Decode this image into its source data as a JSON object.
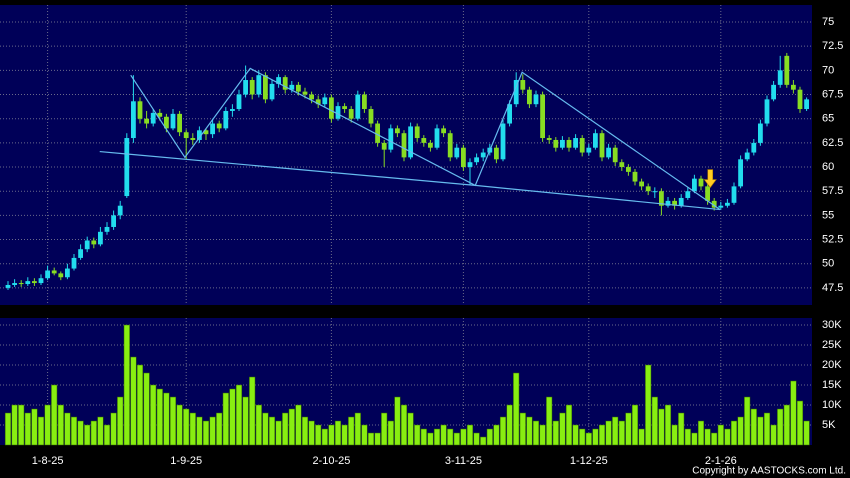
{
  "chart_data": {
    "type": "candlestick",
    "categories": [
      null,
      null,
      null,
      null,
      null,
      null,
      "1-8-25",
      null,
      null,
      null,
      null,
      null,
      null,
      null,
      null,
      null,
      null,
      null,
      null,
      null,
      null,
      null,
      null,
      null,
      null,
      null,
      null,
      "1-9-25",
      null,
      null,
      null,
      null,
      null,
      null,
      null,
      null,
      null,
      null,
      null,
      null,
      null,
      null,
      null,
      null,
      null,
      null,
      null,
      null,
      null,
      "2-10-25",
      null,
      null,
      null,
      null,
      null,
      null,
      null,
      null,
      null,
      null,
      null,
      null,
      null,
      null,
      null,
      null,
      null,
      null,
      null,
      "3-11-25",
      null,
      null,
      null,
      null,
      null,
      null,
      null,
      null,
      null,
      null,
      null,
      null,
      null,
      null,
      null,
      null,
      null,
      null,
      "1-12-25",
      null,
      null,
      null,
      null,
      null,
      null,
      null,
      null,
      null,
      null,
      null,
      null,
      null,
      null,
      null,
      null,
      null,
      null,
      null,
      "2-1-26",
      null,
      null,
      null,
      null,
      null,
      null,
      null,
      null,
      null,
      null,
      null,
      null,
      null
    ],
    "ohlc": [
      [
        47.5,
        48.2,
        47.3,
        47.8
      ],
      [
        47.8,
        48.4,
        47.6,
        48.0
      ],
      [
        48.0,
        48.3,
        47.6,
        47.9
      ],
      [
        47.9,
        48.6,
        47.7,
        48.2
      ],
      [
        48.2,
        48.5,
        47.7,
        48.0
      ],
      [
        48.0,
        48.9,
        47.8,
        48.5
      ],
      [
        48.5,
        49.8,
        48.3,
        49.3
      ],
      [
        49.3,
        49.6,
        48.8,
        49.0
      ],
      [
        49.0,
        49.2,
        48.3,
        48.6
      ],
      [
        48.6,
        50.0,
        48.4,
        49.5
      ],
      [
        49.5,
        51.0,
        49.3,
        50.6
      ],
      [
        50.6,
        52.0,
        50.4,
        51.5
      ],
      [
        51.5,
        52.8,
        51.2,
        52.4
      ],
      [
        52.4,
        52.7,
        51.6,
        52.0
      ],
      [
        52.0,
        53.8,
        51.8,
        53.3
      ],
      [
        53.3,
        54.3,
        53.0,
        53.8
      ],
      [
        53.8,
        55.5,
        53.5,
        55.0
      ],
      [
        55.0,
        56.5,
        54.6,
        56.0
      ],
      [
        57.0,
        63.5,
        56.8,
        63.0
      ],
      [
        63.0,
        69.5,
        62.5,
        66.8
      ],
      [
        66.8,
        67.2,
        64.5,
        65.0
      ],
      [
        65.0,
        65.8,
        64.0,
        64.5
      ],
      [
        64.5,
        66.0,
        64.2,
        65.6
      ],
      [
        65.6,
        66.0,
        64.8,
        65.2
      ],
      [
        65.2,
        65.5,
        63.6,
        64.0
      ],
      [
        64.0,
        66.0,
        63.8,
        65.5
      ],
      [
        65.5,
        65.8,
        63.2,
        63.6
      ],
      [
        63.6,
        63.9,
        60.8,
        63.0
      ],
      [
        63.0,
        63.5,
        62.3,
        62.8
      ],
      [
        62.8,
        64.2,
        62.5,
        63.8
      ],
      [
        63.8,
        64.0,
        62.8,
        63.4
      ],
      [
        63.4,
        65.0,
        63.0,
        64.5
      ],
      [
        64.5,
        64.8,
        63.6,
        64.0
      ],
      [
        64.0,
        66.2,
        63.8,
        65.8
      ],
      [
        65.8,
        66.5,
        65.2,
        66.0
      ],
      [
        66.0,
        68.0,
        65.8,
        67.5
      ],
      [
        67.5,
        70.5,
        67.2,
        69.0
      ],
      [
        69.0,
        69.3,
        67.0,
        67.5
      ],
      [
        67.5,
        70.0,
        67.2,
        69.5
      ],
      [
        69.5,
        69.8,
        66.6,
        67.0
      ],
      [
        67.0,
        69.0,
        66.8,
        68.6
      ],
      [
        68.6,
        69.6,
        68.2,
        69.3
      ],
      [
        69.3,
        69.5,
        67.6,
        68.0
      ],
      [
        68.0,
        68.9,
        67.7,
        68.5
      ],
      [
        68.5,
        68.8,
        67.4,
        67.8
      ],
      [
        67.8,
        68.2,
        67.1,
        67.5
      ],
      [
        67.5,
        67.8,
        66.6,
        67.0
      ],
      [
        67.0,
        67.4,
        66.1,
        66.5
      ],
      [
        66.5,
        67.6,
        66.2,
        67.2
      ],
      [
        67.2,
        67.5,
        64.6,
        65.0
      ],
      [
        65.0,
        66.7,
        64.8,
        66.3
      ],
      [
        66.3,
        66.6,
        65.6,
        66.0
      ],
      [
        66.0,
        66.3,
        64.6,
        65.0
      ],
      [
        65.0,
        67.9,
        64.8,
        67.5
      ],
      [
        67.5,
        67.8,
        65.6,
        66.0
      ],
      [
        66.0,
        66.3,
        64.1,
        64.5
      ],
      [
        64.5,
        64.8,
        62.1,
        62.5
      ],
      [
        62.5,
        62.8,
        60.0,
        61.8
      ],
      [
        61.8,
        64.4,
        61.5,
        64.0
      ],
      [
        64.0,
        64.3,
        63.1,
        63.5
      ],
      [
        63.5,
        63.8,
        60.6,
        61.0
      ],
      [
        61.0,
        64.6,
        60.8,
        64.2
      ],
      [
        64.2,
        64.5,
        62.6,
        63.0
      ],
      [
        63.0,
        63.3,
        62.1,
        62.5
      ],
      [
        62.5,
        62.8,
        61.6,
        62.0
      ],
      [
        62.0,
        64.4,
        61.8,
        64.0
      ],
      [
        64.0,
        64.3,
        63.1,
        63.5
      ],
      [
        63.5,
        63.8,
        60.6,
        61.0
      ],
      [
        61.0,
        62.4,
        60.8,
        62.0
      ],
      [
        62.0,
        62.3,
        59.6,
        60.0
      ],
      [
        60.0,
        60.9,
        58.2,
        60.5
      ],
      [
        60.5,
        61.4,
        60.2,
        61.0
      ],
      [
        61.0,
        61.9,
        60.6,
        61.5
      ],
      [
        61.5,
        62.4,
        61.2,
        62.0
      ],
      [
        62.0,
        62.3,
        60.4,
        60.8
      ],
      [
        60.8,
        64.9,
        60.6,
        64.5
      ],
      [
        64.5,
        66.9,
        64.2,
        66.5
      ],
      [
        66.5,
        69.8,
        66.2,
        69.0
      ],
      [
        69.0,
        69.6,
        67.6,
        68.0
      ],
      [
        68.0,
        68.3,
        66.1,
        66.5
      ],
      [
        66.5,
        67.9,
        66.2,
        67.5
      ],
      [
        67.5,
        67.8,
        62.6,
        63.0
      ],
      [
        63.0,
        63.3,
        62.4,
        62.8
      ],
      [
        62.8,
        63.1,
        61.6,
        62.0
      ],
      [
        62.0,
        63.2,
        61.8,
        62.8
      ],
      [
        62.8,
        63.1,
        61.6,
        62.0
      ],
      [
        62.0,
        63.4,
        61.8,
        63.0
      ],
      [
        63.0,
        63.3,
        61.1,
        61.5
      ],
      [
        61.5,
        62.4,
        61.2,
        62.0
      ],
      [
        62.0,
        63.9,
        61.8,
        63.5
      ],
      [
        63.5,
        63.8,
        60.6,
        61.0
      ],
      [
        61.0,
        62.4,
        60.8,
        62.0
      ],
      [
        62.0,
        62.3,
        60.1,
        60.5
      ],
      [
        60.5,
        60.8,
        59.6,
        60.0
      ],
      [
        60.0,
        60.3,
        59.1,
        59.5
      ],
      [
        59.5,
        59.8,
        58.1,
        58.5
      ],
      [
        58.5,
        58.8,
        57.6,
        58.0
      ],
      [
        58.0,
        58.3,
        57.1,
        57.5
      ],
      [
        57.5,
        57.9,
        56.8,
        57.5
      ],
      [
        57.5,
        57.8,
        55.0,
        56.0
      ],
      [
        56.0,
        56.9,
        55.8,
        56.5
      ],
      [
        56.5,
        56.8,
        55.6,
        56.0
      ],
      [
        56.0,
        57.2,
        55.8,
        56.8
      ],
      [
        56.8,
        57.9,
        56.6,
        57.5
      ],
      [
        57.5,
        59.2,
        57.3,
        58.8
      ],
      [
        58.8,
        59.1,
        57.6,
        58.0
      ],
      [
        58.0,
        58.3,
        56.1,
        56.5
      ],
      [
        56.5,
        56.8,
        55.5,
        55.8
      ],
      [
        55.8,
        56.4,
        55.6,
        56.0
      ],
      [
        56.0,
        56.7,
        55.8,
        56.3
      ],
      [
        56.3,
        58.4,
        56.1,
        58.0
      ],
      [
        58.0,
        61.2,
        57.8,
        60.8
      ],
      [
        60.8,
        61.9,
        60.6,
        61.5
      ],
      [
        61.5,
        62.9,
        61.2,
        62.5
      ],
      [
        62.5,
        64.9,
        62.2,
        64.5
      ],
      [
        64.5,
        67.4,
        64.2,
        67.0
      ],
      [
        67.0,
        68.9,
        66.8,
        68.5
      ],
      [
        68.5,
        71.5,
        68.2,
        70.0
      ],
      [
        71.5,
        71.8,
        68.2,
        68.5
      ],
      [
        68.5,
        69.0,
        67.6,
        68.0
      ],
      [
        68.0,
        68.3,
        65.6,
        66.0
      ],
      [
        66.0,
        67.2,
        65.8,
        67.0
      ]
    ],
    "up_color": "#22ddee",
    "down_color": "#88dd22",
    "volume": [
      8000,
      10000,
      10000,
      8000,
      9000,
      7000,
      10000,
      15000,
      10000,
      8000,
      7000,
      6000,
      5000,
      6000,
      7000,
      5000,
      8000,
      12000,
      30000,
      22000,
      20000,
      18000,
      15000,
      14000,
      13000,
      12000,
      10000,
      9000,
      8000,
      7000,
      6000,
      7000,
      8000,
      13000,
      14000,
      15000,
      12000,
      17000,
      10000,
      8000,
      7000,
      6000,
      8000,
      9000,
      10000,
      7000,
      6000,
      5000,
      4000,
      5000,
      6000,
      5000,
      7000,
      8000,
      5000,
      3000,
      3000,
      8000,
      6000,
      12000,
      10000,
      8000,
      5000,
      4000,
      3000,
      4000,
      5000,
      4000,
      3000,
      4000,
      5000,
      3000,
      2000,
      4000,
      5000,
      7000,
      10000,
      18000,
      8000,
      7000,
      6000,
      5000,
      12000,
      6000,
      8000,
      10000,
      5000,
      4000,
      3000,
      4000,
      5000,
      6000,
      7000,
      6000,
      8000,
      10000,
      4000,
      20000,
      12000,
      9000,
      10000,
      5000,
      8000,
      4000,
      3000,
      6000,
      4000,
      3000,
      5000,
      4000,
      6000,
      7000,
      12000,
      9000,
      7000,
      8000,
      5000,
      9000,
      10000,
      16000,
      11000,
      6000
    ],
    "volume_color": "#88ee11",
    "ylim": [
      45.73,
      76.76
    ],
    "yticks": [
      47.5,
      50,
      52.5,
      55,
      57.5,
      60,
      62.5,
      65,
      67.5,
      70,
      72.5,
      75
    ],
    "vol_ylim": [
      0,
      31750
    ],
    "vol_ticks": [
      {
        "value": 5000,
        "label": "5K"
      },
      {
        "value": 10000,
        "label": "10K"
      },
      {
        "value": 15000,
        "label": "15K"
      },
      {
        "value": 20000,
        "label": "20K"
      },
      {
        "value": 25000,
        "label": "25K"
      },
      {
        "value": 30000,
        "label": "30K"
      }
    ],
    "pattern_lines": [
      {
        "color": "#66bbee",
        "x": [
          18.6,
          26.8,
          36.7,
          70.8,
          77.9,
          107.9
        ],
        "y": [
          69.5,
          61.0,
          70.2,
          58.1,
          69.8,
          55.6
        ]
      },
      {
        "color": "#66bbee",
        "x": [
          13.9,
          70.8,
          107.9
        ],
        "y": [
          61.6,
          58.1,
          55.6
        ]
      }
    ],
    "signal": {
      "x": 106.4,
      "y": 58.7,
      "color": "#ffcc22"
    },
    "grid": true,
    "copyright": "Copyright by AASTOCKS.com Ltd."
  }
}
